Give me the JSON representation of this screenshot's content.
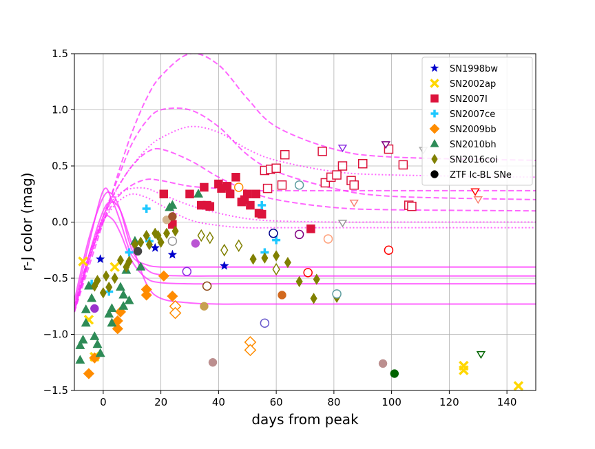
{
  "chart_data": {
    "type": "scatter",
    "xlabel": "days from peak",
    "ylabel": "r-J color (mag)",
    "xlim": [
      -10,
      150
    ],
    "ylim": [
      -1.5,
      1.5
    ],
    "xticks": [
      0,
      20,
      40,
      60,
      80,
      100,
      120,
      140
    ],
    "yticks": [
      {
        "value": -1.5,
        "label": "−1.5"
      },
      {
        "value": -1.0,
        "label": "−1.0"
      },
      {
        "value": -0.5,
        "label": "−0.5"
      },
      {
        "value": 0.0,
        "label": "0.0"
      },
      0.5,
      {
        "value": 1.0,
        "label": "1.0"
      },
      1.5
    ],
    "grid": true,
    "legend": "upper right",
    "curves": [
      {
        "color": "#ff33ff",
        "style": "solid",
        "x": [
          -10,
          -5,
          0,
          3,
          6,
          10,
          15,
          20,
          30,
          40,
          50,
          60,
          80,
          100,
          150
        ],
        "values": [
          -0.75,
          -0.2,
          0.28,
          0.2,
          0.0,
          -0.3,
          -0.38,
          -0.4,
          -0.4,
          -0.4,
          -0.4,
          -0.4,
          -0.4,
          -0.4,
          -0.4
        ]
      },
      {
        "color": "#ff33ff",
        "style": "solid",
        "x": [
          -10,
          -5,
          0,
          3,
          6,
          10,
          15,
          20,
          30,
          40,
          50,
          60,
          80,
          100,
          150
        ],
        "values": [
          -0.78,
          -0.35,
          0.02,
          0.03,
          -0.1,
          -0.35,
          -0.5,
          -0.54,
          -0.55,
          -0.55,
          -0.55,
          -0.55,
          -0.55,
          -0.55,
          -0.55
        ]
      },
      {
        "color": "#ff33ff",
        "style": "solid",
        "x": [
          -10,
          -5,
          0,
          3,
          6,
          10,
          15,
          20,
          30,
          40,
          50,
          60,
          80,
          100,
          150
        ],
        "values": [
          -0.8,
          -0.3,
          0.1,
          0.18,
          0.1,
          -0.2,
          -0.55,
          -0.68,
          -0.72,
          -0.73,
          -0.73,
          -0.73,
          -0.73,
          -0.73,
          -0.73
        ]
      },
      {
        "color": "#ff33ff",
        "style": "solid",
        "x": [
          -10,
          -5,
          0,
          3,
          6,
          10,
          15,
          20,
          30,
          40,
          50,
          60,
          80,
          100,
          150
        ],
        "values": [
          -0.7,
          -0.15,
          0.22,
          0.25,
          0.1,
          -0.25,
          -0.42,
          -0.47,
          -0.48,
          -0.48,
          -0.48,
          -0.48,
          -0.48,
          -0.48,
          -0.48
        ]
      },
      {
        "color": "#ff33ff",
        "style": "dashed",
        "x": [
          -10,
          -5,
          0,
          3,
          6,
          10,
          15,
          20,
          30,
          40,
          50,
          60,
          80,
          100,
          150
        ],
        "values": [
          -0.8,
          -0.4,
          0.0,
          0.25,
          0.5,
          0.8,
          1.1,
          1.3,
          1.5,
          1.4,
          1.1,
          0.85,
          0.65,
          0.58,
          0.55
        ]
      },
      {
        "color": "#ff33ff",
        "style": "dashed",
        "x": [
          -10,
          -5,
          0,
          3,
          6,
          10,
          15,
          20,
          30,
          40,
          50,
          60,
          80,
          100,
          150
        ],
        "values": [
          -0.8,
          -0.35,
          0.05,
          0.25,
          0.45,
          0.7,
          0.9,
          1.0,
          1.0,
          0.85,
          0.6,
          0.45,
          0.3,
          0.23,
          0.2
        ]
      },
      {
        "color": "#ff33ff",
        "style": "dashed",
        "x": [
          -10,
          -5,
          0,
          3,
          6,
          10,
          15,
          20,
          30,
          40,
          50,
          60,
          80,
          100,
          150
        ],
        "values": [
          -0.75,
          -0.3,
          0.05,
          0.22,
          0.35,
          0.5,
          0.62,
          0.65,
          0.55,
          0.4,
          0.28,
          0.2,
          0.13,
          0.11,
          0.1
        ]
      },
      {
        "color": "#ff33ff",
        "style": "dashed",
        "x": [
          -10,
          -5,
          0,
          3,
          6,
          10,
          15,
          20,
          30,
          40,
          50,
          60,
          80,
          100,
          150
        ],
        "values": [
          -0.8,
          -0.3,
          0.0,
          0.15,
          0.25,
          0.33,
          0.38,
          0.37,
          0.32,
          0.3,
          0.28,
          0.28,
          0.28,
          0.28,
          0.28
        ]
      },
      {
        "color": "#ff33ff",
        "style": "dotted",
        "x": [
          -10,
          -5,
          0,
          3,
          6,
          10,
          15,
          20,
          30,
          40,
          50,
          60,
          80,
          100,
          150
        ],
        "values": [
          -0.75,
          -0.3,
          0.05,
          0.18,
          0.26,
          0.3,
          0.3,
          0.25,
          0.15,
          0.08,
          0.03,
          0.01,
          0.0,
          0.0,
          0.0
        ]
      },
      {
        "color": "#ff33ff",
        "style": "dotted",
        "x": [
          -10,
          -5,
          0,
          3,
          6,
          10,
          15,
          20,
          30,
          40,
          50,
          60,
          80,
          100,
          150
        ],
        "values": [
          -0.78,
          -0.32,
          0.0,
          0.12,
          0.2,
          0.25,
          0.22,
          0.15,
          0.02,
          -0.03,
          -0.05,
          -0.05,
          -0.05,
          -0.05,
          -0.05
        ]
      },
      {
        "color": "#ff33ff",
        "style": "dotted",
        "x": [
          -10,
          -5,
          0,
          3,
          6,
          10,
          15,
          20,
          30,
          40,
          50,
          60,
          80,
          100,
          150
        ],
        "values": [
          -0.8,
          -0.35,
          0.0,
          0.2,
          0.35,
          0.5,
          0.65,
          0.75,
          0.85,
          0.8,
          0.65,
          0.55,
          0.45,
          0.42,
          0.4
        ]
      }
    ],
    "series": [
      {
        "name": "SN1998bw",
        "marker": "star",
        "color": "#0000cc",
        "x": [
          -1,
          18,
          24,
          42
        ],
        "values": [
          -0.33,
          -0.23,
          -0.29,
          -0.39
        ]
      },
      {
        "name": "SN2002ap",
        "marker": "x",
        "color": "#ffd700",
        "x": [
          -7,
          -5,
          -3,
          4,
          125,
          125,
          144
        ],
        "values": [
          -0.35,
          -0.87,
          -1.2,
          -0.4,
          -1.28,
          -1.32,
          -1.46
        ]
      },
      {
        "name": "SN2007I",
        "marker": "square",
        "color": "#dc143c",
        "x": [
          21,
          24,
          30,
          34,
          35,
          36,
          37,
          40,
          41,
          43,
          44,
          46,
          48,
          49,
          50,
          51,
          53,
          54,
          55,
          72,
          56,
          57,
          58,
          60,
          62,
          63,
          76,
          77,
          79,
          81,
          83,
          86,
          87,
          90,
          99,
          104,
          106,
          107
        ],
        "values": [
          0.25,
          -0.02,
          0.25,
          0.15,
          0.31,
          0.15,
          0.14,
          0.34,
          0.3,
          0.32,
          0.25,
          0.4,
          0.18,
          0.2,
          0.25,
          0.15,
          0.25,
          0.08,
          0.07,
          -0.06,
          0.46,
          0.3,
          0.47,
          0.48,
          0.33,
          0.6,
          0.63,
          0.35,
          0.4,
          0.42,
          0.5,
          0.37,
          0.33,
          0.52,
          0.65,
          0.51,
          0.15,
          0.14
        ],
        "open": [
          false,
          false,
          false,
          false,
          false,
          false,
          false,
          false,
          false,
          false,
          false,
          false,
          false,
          false,
          false,
          false,
          false,
          false,
          false,
          false,
          true,
          true,
          true,
          true,
          true,
          true,
          true,
          true,
          true,
          true,
          true,
          true,
          true,
          true,
          true,
          true,
          true,
          true
        ]
      },
      {
        "name": "SN2007ce",
        "marker": "plus",
        "color": "#1ec8ff",
        "x": [
          -4,
          2,
          9,
          15,
          16,
          55,
          56,
          60
        ],
        "values": [
          -0.55,
          -0.62,
          -0.27,
          0.12,
          -0.17,
          0.15,
          -0.27,
          -0.16
        ]
      },
      {
        "name": "SN2009bb",
        "marker": "diamond",
        "color": "#ff8c00",
        "x": [
          -5,
          -3,
          5,
          5,
          6,
          15,
          15,
          21,
          24,
          25,
          25,
          51,
          51
        ],
        "values": [
          -1.35,
          -1.21,
          -0.95,
          -0.88,
          -0.8,
          -0.6,
          -0.65,
          -0.48,
          -0.66,
          -0.75,
          -0.81,
          -1.07,
          -1.14
        ],
        "open": [
          false,
          false,
          false,
          false,
          false,
          false,
          false,
          false,
          false,
          true,
          true,
          true,
          true
        ]
      },
      {
        "name": "SN2010bh",
        "marker": "triangle",
        "color": "#2e8b57",
        "x": [
          -8,
          -8,
          -7,
          -6,
          -6,
          -5,
          -4,
          -3,
          -2,
          -1,
          2,
          3,
          3,
          6,
          7,
          7,
          8,
          9,
          11,
          13,
          23,
          24,
          33
        ],
        "values": [
          -1.23,
          -1.1,
          -1.05,
          -0.78,
          -0.9,
          -0.57,
          -0.68,
          -1.02,
          -1.09,
          -1.17,
          -0.82,
          -0.9,
          -0.77,
          -0.58,
          -0.65,
          -0.75,
          -0.43,
          -0.7,
          -0.17,
          -0.4,
          0.13,
          0.15,
          0.25
        ]
      },
      {
        "name": "SN2016coi",
        "marker": "thin_diamond",
        "color": "#808000",
        "x": [
          -3,
          -2,
          0,
          1,
          2,
          4,
          6,
          8,
          9,
          11,
          13,
          15,
          16,
          18,
          19,
          20,
          22,
          25,
          52,
          56,
          60,
          64,
          68,
          73,
          74,
          81,
          34,
          37,
          42,
          47,
          60
        ],
        "values": [
          -0.57,
          -0.52,
          -0.63,
          -0.48,
          -0.58,
          -0.5,
          -0.34,
          -0.4,
          -0.35,
          -0.2,
          -0.18,
          -0.12,
          -0.2,
          -0.1,
          -0.12,
          -0.18,
          -0.1,
          -0.08,
          -0.33,
          -0.32,
          -0.3,
          -0.36,
          -0.53,
          -0.68,
          -0.51,
          -0.67,
          -0.12,
          -0.14,
          -0.25,
          -0.21,
          -0.42
        ],
        "open": [
          false,
          false,
          false,
          false,
          false,
          false,
          false,
          false,
          false,
          false,
          false,
          false,
          false,
          false,
          false,
          false,
          false,
          false,
          false,
          false,
          false,
          false,
          false,
          false,
          false,
          false,
          true,
          true,
          true,
          true,
          true
        ]
      },
      {
        "name": "ZTF Ic-BL SNe",
        "marker": "circle",
        "color": "#000000",
        "x": [
          -3,
          12,
          22,
          24,
          24,
          29,
          32,
          35,
          36,
          38,
          47,
          56,
          59,
          62,
          68,
          68,
          71,
          78,
          81,
          97,
          99,
          101
        ],
        "values": [
          -0.77,
          -0.26,
          0.02,
          0.05,
          -0.17,
          -0.44,
          -0.19,
          -0.75,
          -0.57,
          -1.25,
          0.31,
          -0.9,
          -0.1,
          -0.65,
          -0.11,
          0.33,
          -0.45,
          -0.15,
          -0.64,
          -1.26,
          -0.25,
          -1.35
        ],
        "point_colors": [
          "#9932cc",
          "#444444",
          "#d2b48c",
          "#a0522d",
          "#999999",
          "#8a2be2",
          "#ba55d3",
          "#c8a050",
          "#8b4513",
          "#bc8f8f",
          "#ff8c00",
          "#6a5acd",
          "#00008b",
          "#d2691e",
          "#800080",
          "#5f9ea0",
          "#ff0000",
          "#ffa07a",
          "#5f9ea0",
          "#bc8f8f",
          "#ff0000",
          "#006400"
        ],
        "open": [
          false,
          false,
          false,
          false,
          true,
          true,
          false,
          false,
          true,
          false,
          true,
          true,
          true,
          false,
          true,
          true,
          true,
          true,
          true,
          false,
          true,
          false
        ]
      },
      {
        "marker": "triangle_down",
        "color": "#000000",
        "x": [
          83,
          83,
          87,
          98,
          111,
          129,
          130,
          131
        ],
        "values": [
          0.66,
          -0.01,
          0.17,
          0.69,
          0.64,
          0.27,
          0.2,
          -1.18
        ],
        "point_colors": [
          "#8a2be2",
          "#999999",
          "#fa8072",
          "#800080",
          "#aaaaaa",
          "#ff0000",
          "#fa8072",
          "#006400"
        ],
        "open": [
          true,
          true,
          true,
          true,
          true,
          true,
          true,
          true
        ]
      }
    ]
  }
}
